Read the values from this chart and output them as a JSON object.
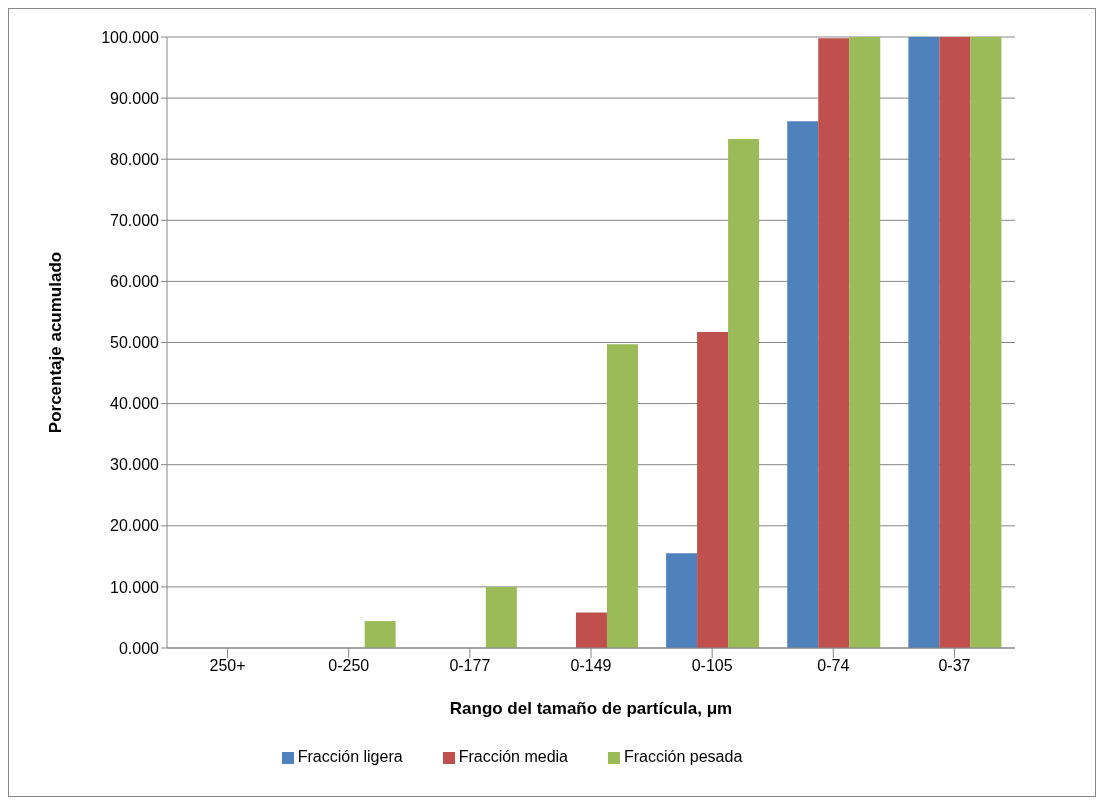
{
  "chart_data": {
    "type": "bar",
    "xlabel": "Rango del tamaño de partícula, μm",
    "ylabel": "Porcentaje acumulado",
    "categories": [
      "250+",
      "0-250",
      "0-177",
      "0-149",
      "0-105",
      "0-74",
      "0-37"
    ],
    "series": [
      {
        "name": "Fracción ligera",
        "color": "#4f81bd",
        "values": [
          0,
          0,
          0,
          0,
          15.5,
          86.2,
          100
        ]
      },
      {
        "name": "Fracción media",
        "color": "#c0504d",
        "values": [
          0,
          0,
          0,
          5.8,
          51.7,
          99.8,
          100
        ]
      },
      {
        "name": "Fracción pesada",
        "color": "#9bbb59",
        "values": [
          0,
          4.4,
          10,
          49.7,
          83.3,
          100,
          100
        ]
      }
    ],
    "ylim": [
      0,
      100
    ],
    "yticks": [
      {
        "value": 0,
        "label": "0.000"
      },
      {
        "value": 10,
        "label": "10.000"
      },
      {
        "value": 20,
        "label": "20.000"
      },
      {
        "value": 30,
        "label": "30.000"
      },
      {
        "value": 40,
        "label": "40.000"
      },
      {
        "value": 50,
        "label": "50.000"
      },
      {
        "value": 60,
        "label": "60.000"
      },
      {
        "value": 70,
        "label": "70.000"
      },
      {
        "value": 80,
        "label": "80.000"
      },
      {
        "value": 90,
        "label": "90.000"
      },
      {
        "value": 100,
        "label": "100.000"
      }
    ],
    "grid": "y",
    "legend": "bottom"
  }
}
